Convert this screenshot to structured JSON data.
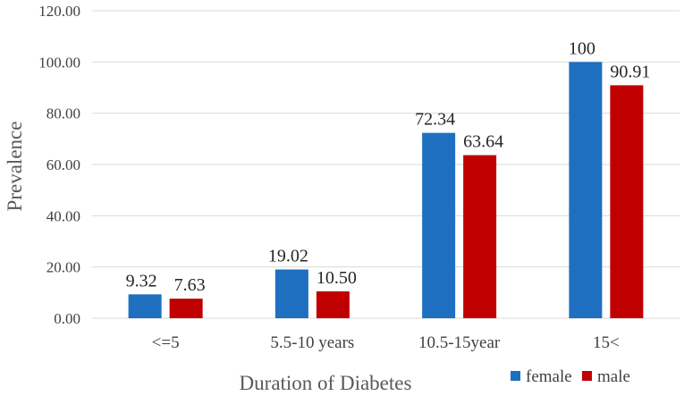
{
  "chart_data": {
    "type": "bar",
    "title": "",
    "xlabel": "Duration of Diabetes",
    "ylabel": "Prevalence",
    "categories": [
      "<=5",
      "5.5-10 years",
      "10.5-15year",
      "15<"
    ],
    "series": [
      {
        "name": "female",
        "color": "#1F6FC1",
        "values": [
          9.32,
          19.02,
          72.34,
          100
        ],
        "labels": [
          "9.32",
          "19.02",
          "72.34",
          "100"
        ]
      },
      {
        "name": "male",
        "color": "#C00000",
        "values": [
          7.63,
          10.5,
          63.64,
          90.91
        ],
        "labels": [
          "7.63",
          "10.50",
          "63.64",
          "90.91"
        ]
      }
    ],
    "ylim": [
      0,
      120
    ],
    "yticks": [
      "0.00",
      "20.00",
      "40.00",
      "60.00",
      "80.00",
      "100.00",
      "120.00"
    ],
    "grid": true,
    "legend_position": "bottom-right"
  }
}
